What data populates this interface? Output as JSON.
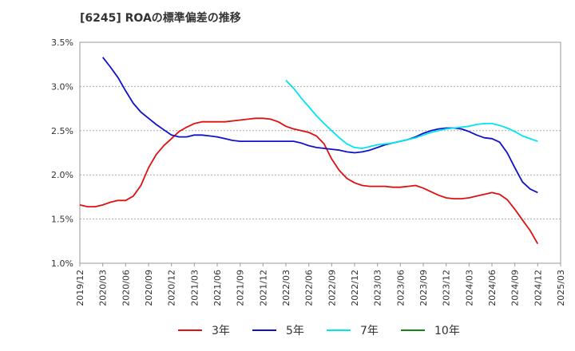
{
  "chart_data": {
    "type": "line",
    "title": "[6245]  ROAの標準偏差の推移",
    "xlabel": "",
    "ylabel": "",
    "ylim": [
      1.0,
      3.5
    ],
    "y_ticks": [
      "1.0%",
      "1.5%",
      "2.0%",
      "2.5%",
      "3.0%",
      "3.5%"
    ],
    "x_ticks": [
      "2019/12",
      "2020/03",
      "2020/06",
      "2020/09",
      "2020/12",
      "2021/03",
      "2021/06",
      "2021/09",
      "2021/12",
      "2022/03",
      "2022/06",
      "2022/09",
      "2022/12",
      "2023/03",
      "2023/06",
      "2023/09",
      "2023/12",
      "2024/03",
      "2024/06",
      "2024/09",
      "2024/12",
      "2025/03"
    ],
    "x_range": [
      "2019/12",
      "2025/03"
    ],
    "grid": "horizontal dashed",
    "legend_position": "bottom",
    "series": [
      {
        "name": "3年",
        "color": "#dd1111",
        "x": [
          "2019/12",
          "2020/01",
          "2020/02",
          "2020/03",
          "2020/04",
          "2020/05",
          "2020/06",
          "2020/07",
          "2020/08",
          "2020/09",
          "2020/10",
          "2020/11",
          "2020/12",
          "2021/01",
          "2021/02",
          "2021/03",
          "2021/04",
          "2021/05",
          "2021/06",
          "2021/07",
          "2021/08",
          "2021/09",
          "2021/10",
          "2021/11",
          "2021/12",
          "2022/01",
          "2022/02",
          "2022/03",
          "2022/04",
          "2022/05",
          "2022/06",
          "2022/07",
          "2022/08",
          "2022/09",
          "2022/10",
          "2022/11",
          "2022/12",
          "2023/01",
          "2023/02",
          "2023/03",
          "2023/04",
          "2023/05",
          "2023/06",
          "2023/07",
          "2023/08",
          "2023/09",
          "2023/10",
          "2023/11",
          "2023/12",
          "2024/01",
          "2024/02",
          "2024/03",
          "2024/04",
          "2024/05",
          "2024/06",
          "2024/07",
          "2024/08",
          "2024/09",
          "2024/10",
          "2024/11",
          "2024/12"
        ],
        "values": [
          1.66,
          1.64,
          1.64,
          1.66,
          1.69,
          1.71,
          1.71,
          1.76,
          1.88,
          2.08,
          2.23,
          2.33,
          2.41,
          2.49,
          2.54,
          2.58,
          2.6,
          2.6,
          2.6,
          2.6,
          2.61,
          2.62,
          2.63,
          2.64,
          2.64,
          2.63,
          2.6,
          2.55,
          2.52,
          2.5,
          2.48,
          2.44,
          2.35,
          2.18,
          2.05,
          1.96,
          1.91,
          1.88,
          1.87,
          1.87,
          1.87,
          1.86,
          1.86,
          1.87,
          1.88,
          1.85,
          1.81,
          1.77,
          1.74,
          1.73,
          1.73,
          1.74,
          1.76,
          1.78,
          1.8,
          1.78,
          1.72,
          1.61,
          1.49,
          1.37,
          1.22
        ]
      },
      {
        "name": "5年",
        "color": "#1111cc",
        "x": [
          "2020/03",
          "2020/04",
          "2020/05",
          "2020/06",
          "2020/07",
          "2020/08",
          "2020/09",
          "2020/10",
          "2020/11",
          "2020/12",
          "2021/01",
          "2021/02",
          "2021/03",
          "2021/04",
          "2021/05",
          "2021/06",
          "2021/07",
          "2021/08",
          "2021/09",
          "2021/10",
          "2021/11",
          "2021/12",
          "2022/01",
          "2022/02",
          "2022/03",
          "2022/04",
          "2022/05",
          "2022/06",
          "2022/07",
          "2022/08",
          "2022/09",
          "2022/10",
          "2022/11",
          "2022/12",
          "2023/01",
          "2023/02",
          "2023/03",
          "2023/04",
          "2023/05",
          "2023/06",
          "2023/07",
          "2023/08",
          "2023/09",
          "2023/10",
          "2023/11",
          "2023/12",
          "2024/01",
          "2024/02",
          "2024/03",
          "2024/04",
          "2024/05",
          "2024/06",
          "2024/07",
          "2024/08",
          "2024/09",
          "2024/10",
          "2024/11",
          "2024/12"
        ],
        "values": [
          3.33,
          3.22,
          3.1,
          2.95,
          2.81,
          2.71,
          2.64,
          2.57,
          2.51,
          2.45,
          2.43,
          2.43,
          2.45,
          2.45,
          2.44,
          2.43,
          2.41,
          2.39,
          2.38,
          2.38,
          2.38,
          2.38,
          2.38,
          2.38,
          2.38,
          2.38,
          2.36,
          2.33,
          2.31,
          2.3,
          2.29,
          2.28,
          2.26,
          2.25,
          2.26,
          2.28,
          2.31,
          2.34,
          2.36,
          2.38,
          2.4,
          2.43,
          2.47,
          2.5,
          2.52,
          2.53,
          2.53,
          2.52,
          2.49,
          2.45,
          2.42,
          2.41,
          2.37,
          2.25,
          2.08,
          1.92,
          1.84,
          1.8
        ]
      },
      {
        "name": "7年",
        "color": "#00e5ee",
        "x": [
          "2022/03",
          "2022/04",
          "2022/05",
          "2022/06",
          "2022/07",
          "2022/08",
          "2022/09",
          "2022/10",
          "2022/11",
          "2022/12",
          "2023/01",
          "2023/02",
          "2023/03",
          "2023/04",
          "2023/05",
          "2023/06",
          "2023/07",
          "2023/08",
          "2023/09",
          "2023/10",
          "2023/11",
          "2023/12",
          "2024/01",
          "2024/02",
          "2024/03",
          "2024/04",
          "2024/05",
          "2024/06",
          "2024/07",
          "2024/08",
          "2024/09",
          "2024/10",
          "2024/11",
          "2024/12"
        ],
        "values": [
          3.07,
          2.98,
          2.87,
          2.77,
          2.67,
          2.58,
          2.5,
          2.42,
          2.35,
          2.31,
          2.3,
          2.32,
          2.34,
          2.35,
          2.36,
          2.38,
          2.4,
          2.42,
          2.45,
          2.48,
          2.5,
          2.52,
          2.53,
          2.54,
          2.55,
          2.57,
          2.58,
          2.58,
          2.56,
          2.53,
          2.49,
          2.44,
          2.41,
          2.38
        ]
      },
      {
        "name": "10年",
        "color": "#118811",
        "x": [],
        "values": []
      }
    ]
  }
}
